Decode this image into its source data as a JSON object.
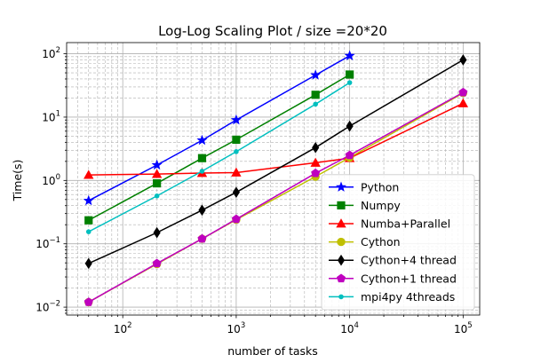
{
  "chart_data": {
    "type": "line",
    "title": "Log-Log Scaling Plot / size =20*20",
    "xlabel": "number of tasks",
    "ylabel": "Time(s)",
    "xscale": "log",
    "yscale": "log",
    "xlim": [
      32,
      140000
    ],
    "ylim": [
      0.0075,
      150
    ],
    "xticks": [
      {
        "value": 100,
        "label": "10",
        "exp": "2"
      },
      {
        "value": 1000,
        "label": "10",
        "exp": "3"
      },
      {
        "value": 10000,
        "label": "10",
        "exp": "4"
      },
      {
        "value": 100000,
        "label": "10",
        "exp": "5"
      }
    ],
    "yticks": [
      {
        "value": 0.01,
        "label": "10",
        "exp": "−2"
      },
      {
        "value": 0.1,
        "label": "10",
        "exp": "−1"
      },
      {
        "value": 1,
        "label": "10",
        "exp": "0"
      },
      {
        "value": 10,
        "label": "10",
        "exp": "1"
      },
      {
        "value": 100,
        "label": "10",
        "exp": "2"
      }
    ],
    "grid": true,
    "legend_position": "lower-right",
    "series": [
      {
        "name": "Python",
        "color": "#0000ff",
        "marker": "star",
        "x": [
          50,
          200,
          500,
          1000,
          5000,
          10000
        ],
        "y": [
          0.48,
          1.75,
          4.3,
          9.0,
          46,
          93
        ]
      },
      {
        "name": "Numpy",
        "color": "#008000",
        "marker": "square",
        "x": [
          50,
          200,
          500,
          1000,
          5000,
          10000
        ],
        "y": [
          0.235,
          0.9,
          2.25,
          4.4,
          22.5,
          47
        ]
      },
      {
        "name": "Numba+Parallel",
        "color": "#ff0000",
        "marker": "triangle",
        "x": [
          50,
          200,
          500,
          1000,
          5000,
          10000,
          100000
        ],
        "y": [
          1.22,
          1.26,
          1.31,
          1.33,
          1.9,
          2.25,
          16.5
        ]
      },
      {
        "name": "Cython",
        "color": "#bfbf00",
        "marker": "circle",
        "x": [
          50,
          200,
          500,
          1000,
          5000,
          10000,
          100000
        ],
        "y": [
          0.012,
          0.048,
          0.12,
          0.24,
          1.15,
          2.3,
          24
        ]
      },
      {
        "name": "Cython+4 thread",
        "color": "#000000",
        "marker": "diamond",
        "x": [
          50,
          200,
          500,
          1000,
          5000,
          10000,
          100000
        ],
        "y": [
          0.049,
          0.15,
          0.34,
          0.65,
          3.3,
          7.2,
          80
        ]
      },
      {
        "name": "Cython+1 thread",
        "color": "#bf00bf",
        "marker": "pentagon",
        "x": [
          50,
          200,
          500,
          1000,
          5000,
          10000,
          100000
        ],
        "y": [
          0.012,
          0.049,
          0.12,
          0.245,
          1.3,
          2.5,
          24.5
        ]
      },
      {
        "name": "mpi4py 4threads",
        "color": "#00bfbf",
        "marker": "point",
        "x": [
          50,
          200,
          500,
          1000,
          5000,
          10000
        ],
        "y": [
          0.155,
          0.57,
          1.4,
          2.85,
          16,
          35
        ]
      }
    ]
  }
}
